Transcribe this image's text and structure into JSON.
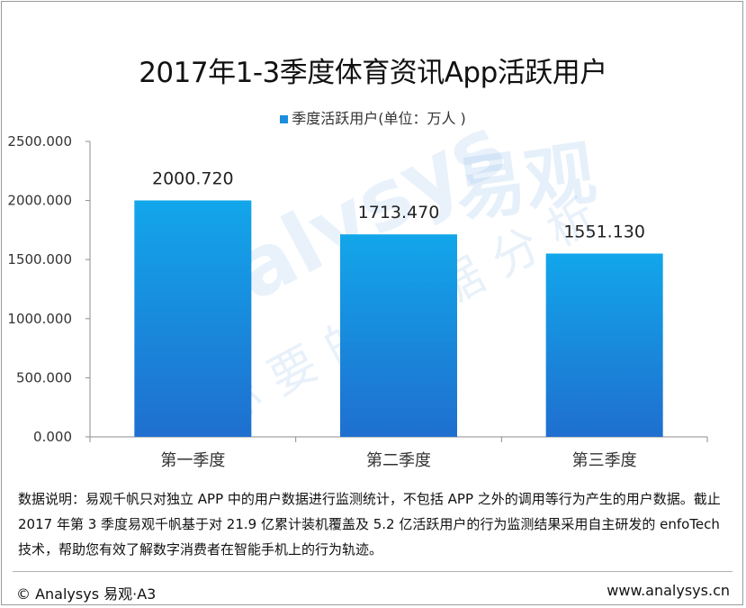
{
  "title": "2017年1-3季度体育资讯App活跃用户",
  "legend": {
    "label": "季度活跃用户(单位：万人 )",
    "color": "#1a8fe0"
  },
  "watermark": {
    "brand": "易观",
    "latin": "Analysys",
    "slogan": "你要的数据分析"
  },
  "note": "数据说明：易观千帆只对独立 APP 中的用户数据进行监测统计，不包括 APP 之外的调用等行为产生的用户数据。截止 2017 年第 3 季度易观千帆基于对 21.9 亿累计装机覆盖及 5.2 亿活跃用户的行为监测结果采用自主研发的 enfoTech 技术，帮助您有效了解数字消费者在智能手机上的行为轨迹。",
  "footer": {
    "left": "© Analysys 易观·A3",
    "right": "www.analysys.cn"
  },
  "chart_data": {
    "type": "bar",
    "title": "2017年1-3季度体育资讯App活跃用户",
    "categories": [
      "第一季度",
      "第二季度",
      "第三季度"
    ],
    "series": [
      {
        "name": "季度活跃用户(单位：万人 )",
        "values": [
          2000.72,
          1713.47,
          1551.13
        ],
        "labels": [
          "2000.720",
          "1713.470",
          "1551.130"
        ]
      }
    ],
    "ylim": [
      0,
      2500
    ],
    "yticks": [
      "0.000",
      "500.000",
      "1000.000",
      "1500.000",
      "2000.000",
      "2500.000"
    ],
    "xlabel": "",
    "ylabel": "",
    "grid": false,
    "legend_position": "top-center",
    "bar_gradient": [
      "#12a6ea",
      "#1f6fcf"
    ]
  }
}
